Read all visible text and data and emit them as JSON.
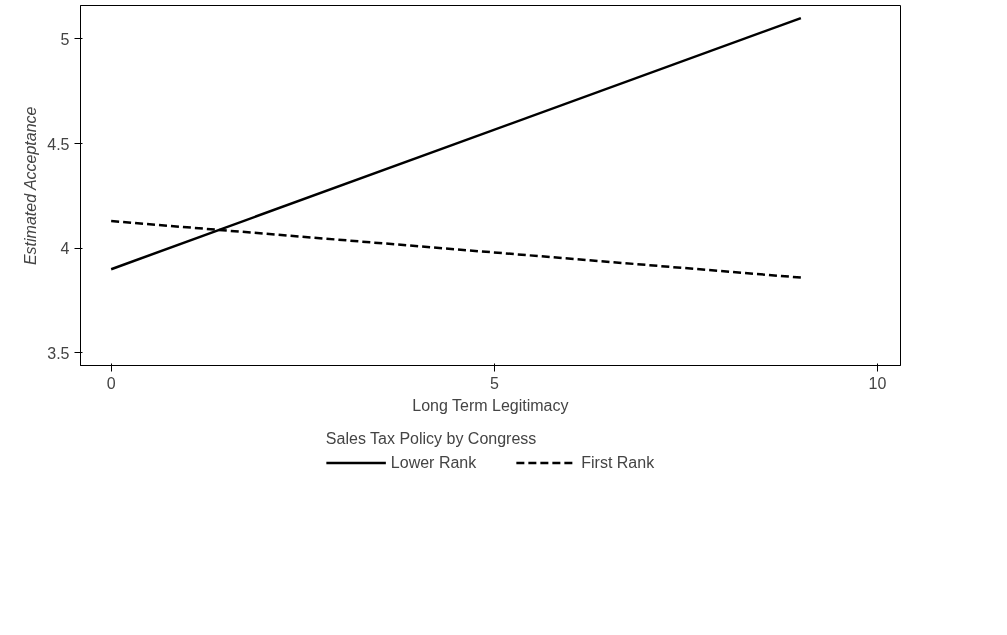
{
  "chart_data": {
    "type": "line",
    "xlabel": "Long Term Legitimacy",
    "ylabel": "Estimated Acceptance",
    "legend_title": "Sales Tax Policy by Congress",
    "x": [
      0,
      9
    ],
    "series": [
      {
        "name": "Lower Rank",
        "color": "#000000",
        "values": [
          3.9,
          5.1
        ],
        "line_style": "solid"
      },
      {
        "name": "First Rank",
        "color": "#000000",
        "values": [
          4.13,
          3.86
        ],
        "line_style": "dashed"
      }
    ],
    "xlim": [
      -0.4,
      10.3
    ],
    "ylim": [
      3.44,
      5.16
    ],
    "xticks": [
      0,
      5,
      10
    ],
    "yticks": [
      3.5,
      4,
      4.5,
      5
    ],
    "grid": false,
    "legend": "bottom",
    "marker": "none"
  }
}
